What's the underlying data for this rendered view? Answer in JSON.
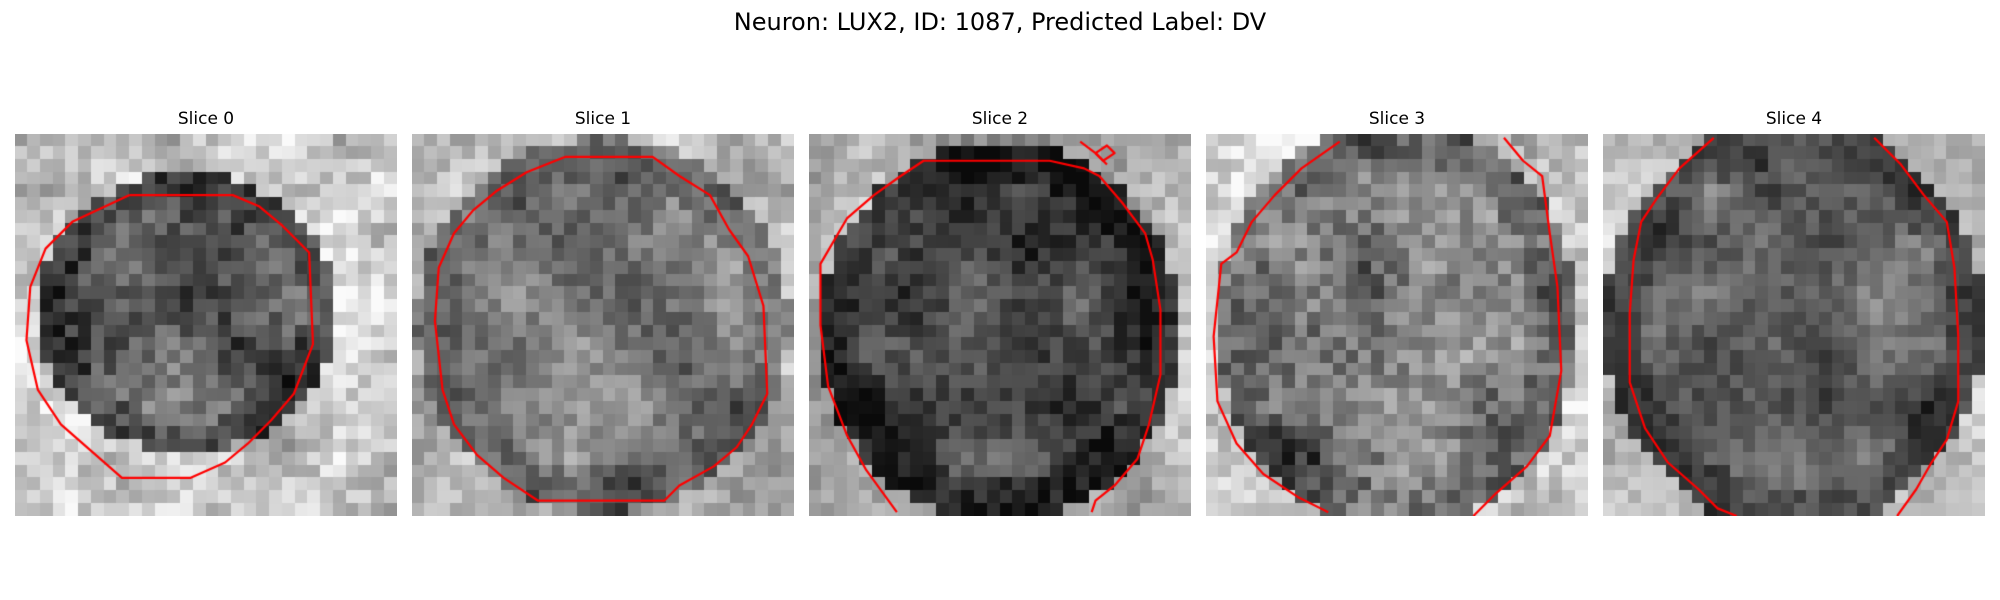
{
  "figure": {
    "title": "Neuron: LUX2, ID: 1087, Predicted Label: DV"
  },
  "panels": [
    {
      "title": "Slice 0"
    },
    {
      "title": "Slice 1"
    },
    {
      "title": "Slice 2"
    },
    {
      "title": "Slice 3"
    },
    {
      "title": "Slice 4"
    }
  ],
  "colors": {
    "contour": "#ff0000",
    "background": "#ffffff"
  }
}
